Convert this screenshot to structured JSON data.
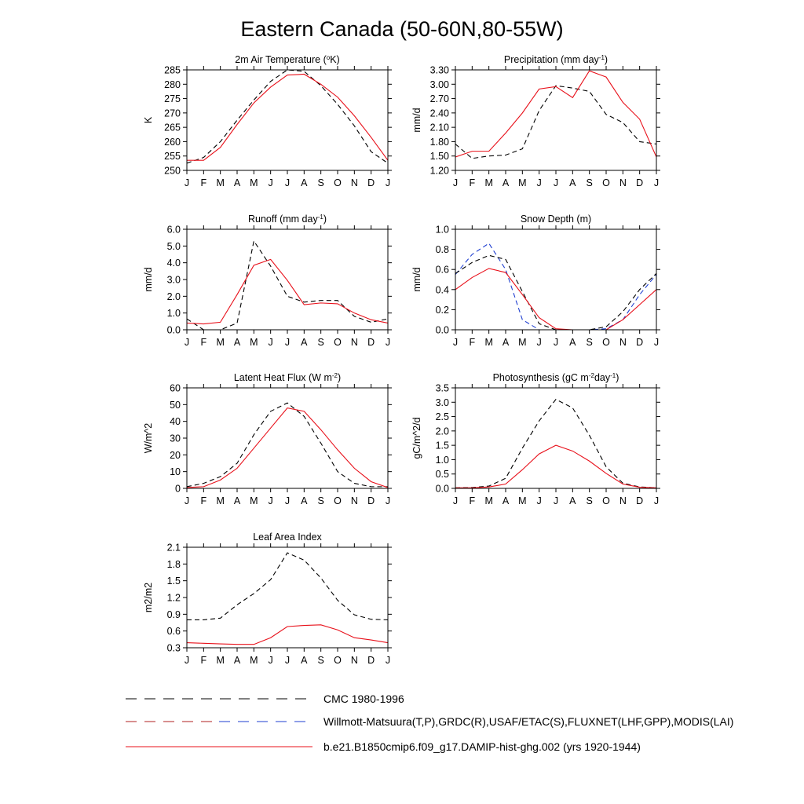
{
  "figure_title": "Eastern Canada (50-60N,80-55W)",
  "legend": {
    "entries": [
      {
        "label": "CMC 1980-1996",
        "style": "black-dashed"
      },
      {
        "label": "Willmott-Matsuura(T,P),GRDC(R),USAF/ETAC(S),FLUXNET(LHF,GPP),MODIS(LAI)",
        "style": "red-blue-dashed"
      },
      {
        "label": "b.e21.B1850cmip6.f09_g17.DAMIP-hist-ghg.002 (yrs 1920-1944)",
        "style": "red-solid"
      }
    ]
  },
  "colors": {
    "cmc": "#000000",
    "obs": "#b22222",
    "obs_blue": "#1f3fd0",
    "model": "#e8101a"
  },
  "chart_data": [
    {
      "type": "line",
      "title": "2m Air Temperature (",
      "title_sup": "o",
      "title_suffix": "K)",
      "ylabel": "K",
      "ylim": [
        250,
        285
      ],
      "yticks": [
        "250",
        "255",
        "260",
        "265",
        "270",
        "275",
        "280",
        "285"
      ],
      "categories": [
        "J",
        "F",
        "M",
        "A",
        "M",
        "J",
        "J",
        "A",
        "S",
        "O",
        "N",
        "D",
        "J"
      ],
      "series": [
        {
          "style": "cmc",
          "values": [
            252.5,
            254.5,
            260,
            267.5,
            274.5,
            281,
            285,
            284.5,
            279.5,
            273,
            265.5,
            256.5,
            252.5
          ]
        },
        {
          "style": "model",
          "values": [
            253.5,
            253.5,
            258,
            266,
            273.5,
            279,
            283.2,
            283.5,
            280,
            275.5,
            269,
            261.5,
            253.5
          ]
        }
      ]
    },
    {
      "type": "line",
      "title": "Precipitation (mm day",
      "title_sup": "-1",
      "title_suffix": ")",
      "ylabel": "mm/d",
      "ylim": [
        1.2,
        3.3
      ],
      "yticks": [
        "1.20",
        "1.50",
        "1.80",
        "2.10",
        "2.40",
        "2.70",
        "3.00",
        "3.30"
      ],
      "categories": [
        "J",
        "F",
        "M",
        "A",
        "M",
        "J",
        "J",
        "A",
        "S",
        "O",
        "N",
        "D",
        "J"
      ],
      "series": [
        {
          "style": "cmc",
          "values": [
            1.75,
            1.45,
            1.5,
            1.52,
            1.65,
            2.45,
            2.97,
            2.92,
            2.85,
            2.37,
            2.2,
            1.8,
            1.75
          ]
        },
        {
          "style": "model",
          "values": [
            1.48,
            1.6,
            1.6,
            1.98,
            2.4,
            2.9,
            2.95,
            2.72,
            3.28,
            3.15,
            2.62,
            2.27,
            1.48
          ]
        }
      ]
    },
    {
      "type": "line",
      "title": "Runoff (mm day",
      "title_sup": "-1",
      "title_suffix": ")",
      "ylabel": "mm/d",
      "ylim": [
        0,
        6
      ],
      "yticks": [
        "0.0",
        "1.0",
        "2.0",
        "3.0",
        "4.0",
        "5.0",
        "6.0"
      ],
      "categories": [
        "J",
        "F",
        "M",
        "A",
        "M",
        "J",
        "J",
        "A",
        "S",
        "O",
        "N",
        "D",
        "J"
      ],
      "series": [
        {
          "style": "cmc",
          "values": [
            0.65,
            0.0,
            0.0,
            0.4,
            5.3,
            3.8,
            2.0,
            1.65,
            1.75,
            1.75,
            0.8,
            0.45,
            0.65
          ]
        },
        {
          "style": "model",
          "values": [
            0.4,
            0.35,
            0.45,
            2.1,
            3.85,
            4.2,
            2.95,
            1.5,
            1.6,
            1.55,
            1.0,
            0.6,
            0.4
          ]
        }
      ]
    },
    {
      "type": "line",
      "title": "Snow Depth (m)",
      "title_sup": "",
      "title_suffix": "",
      "ylabel": "mm/d",
      "ylim": [
        0,
        1
      ],
      "yticks": [
        "0.0",
        "0.2",
        "0.4",
        "0.6",
        "0.8",
        "1.0"
      ],
      "categories": [
        "J",
        "F",
        "M",
        "A",
        "M",
        "J",
        "J",
        "A",
        "S",
        "O",
        "N",
        "D",
        "J"
      ],
      "series": [
        {
          "style": "obs_blue",
          "values": [
            0.55,
            0.75,
            0.86,
            0.6,
            0.1,
            0.0,
            0.0,
            0.0,
            0.0,
            0.01,
            0.1,
            0.35,
            0.55
          ]
        },
        {
          "style": "cmc",
          "values": [
            0.56,
            0.67,
            0.74,
            0.7,
            0.38,
            0.06,
            0.0,
            0.0,
            0.0,
            0.03,
            0.18,
            0.4,
            0.56
          ]
        },
        {
          "style": "model",
          "values": [
            0.4,
            0.52,
            0.61,
            0.57,
            0.35,
            0.12,
            0.01,
            0.0,
            0.0,
            0.0,
            0.1,
            0.25,
            0.4
          ]
        }
      ]
    },
    {
      "type": "line",
      "title": "Latent Heat Flux (W m",
      "title_sup": "-2",
      "title_suffix": ")",
      "ylabel": "W/m^2",
      "ylim": [
        0,
        60
      ],
      "yticks": [
        "0",
        "10",
        "20",
        "30",
        "40",
        "50",
        "60"
      ],
      "categories": [
        "J",
        "F",
        "M",
        "A",
        "M",
        "J",
        "J",
        "A",
        "S",
        "O",
        "N",
        "D",
        "J"
      ],
      "series": [
        {
          "style": "cmc",
          "values": [
            1,
            3,
            7,
            15,
            32,
            46,
            51,
            43,
            27,
            10,
            3,
            1,
            1
          ]
        },
        {
          "style": "model",
          "values": [
            0.5,
            1,
            5,
            12,
            24,
            36,
            48,
            46,
            35,
            23,
            12,
            4,
            0.5
          ]
        }
      ]
    },
    {
      "type": "line",
      "title": "Photosynthesis (gC m",
      "title_sup": "-2",
      "title_suffix": "day",
      "title_sup2": "-1",
      "title_suffix2": ")",
      "ylabel": "gC/m^2/d",
      "ylim": [
        0,
        3.5
      ],
      "yticks": [
        "0.0",
        "0.5",
        "1.0",
        "1.5",
        "2.0",
        "2.5",
        "3.0",
        "3.5"
      ],
      "categories": [
        "J",
        "F",
        "M",
        "A",
        "M",
        "J",
        "J",
        "A",
        "S",
        "O",
        "N",
        "D",
        "J"
      ],
      "series": [
        {
          "style": "cmc",
          "values": [
            0.02,
            0.03,
            0.08,
            0.35,
            1.4,
            2.35,
            3.1,
            2.8,
            1.85,
            0.75,
            0.18,
            0.05,
            0.02
          ]
        },
        {
          "style": "model",
          "values": [
            0.02,
            0.02,
            0.05,
            0.15,
            0.65,
            1.2,
            1.5,
            1.3,
            0.95,
            0.52,
            0.15,
            0.04,
            0.02
          ]
        }
      ]
    },
    {
      "type": "line",
      "title": "Leaf Area Index",
      "title_sup": "",
      "title_suffix": "",
      "ylabel": "m2/m2",
      "ylim": [
        0.3,
        2.1
      ],
      "yticks": [
        "0.3",
        "0.6",
        "0.9",
        "1.2",
        "1.5",
        "1.8",
        "2.1"
      ],
      "categories": [
        "J",
        "F",
        "M",
        "A",
        "M",
        "J",
        "J",
        "A",
        "S",
        "O",
        "N",
        "D",
        "J"
      ],
      "series": [
        {
          "style": "cmc",
          "values": [
            0.8,
            0.8,
            0.83,
            1.07,
            1.27,
            1.52,
            2.0,
            1.87,
            1.55,
            1.15,
            0.89,
            0.81,
            0.8
          ]
        },
        {
          "style": "model",
          "values": [
            0.39,
            0.38,
            0.37,
            0.36,
            0.36,
            0.48,
            0.68,
            0.7,
            0.71,
            0.62,
            0.48,
            0.44,
            0.39
          ]
        }
      ]
    }
  ]
}
